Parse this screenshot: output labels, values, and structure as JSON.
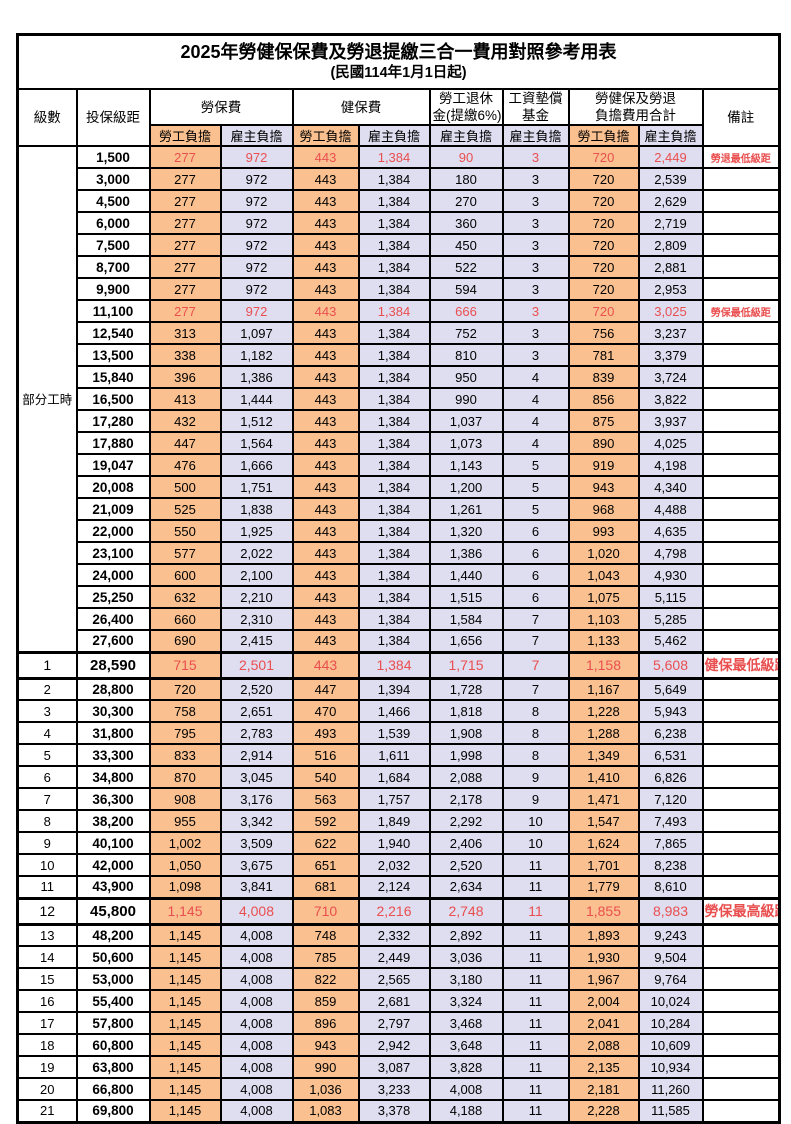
{
  "title": "2025年勞健保保費及勞退提繳三合一費用對照參考用表",
  "subtitle": "(民國114年1月1日起)",
  "columns": {
    "level": "級數",
    "bracket": "投保級距",
    "labor_insurance": "勞保費",
    "health_insurance": "健保費",
    "pension_line1": "勞工退休",
    "pension_line2": "金(提繳6%)",
    "wage_fund_line1": "工資墊償",
    "wage_fund_line2": "基金",
    "total_line1": "勞健保及勞退",
    "total_line2": "負擔費用合計",
    "remark": "備註",
    "employee_share": "勞工負擔",
    "employer_share": "雇主負擔"
  },
  "colors": {
    "employee_fill": "#fac08f",
    "employer_fill": "#dfddf0",
    "highlight_text": "#e94f4f",
    "border": "#000000"
  },
  "table": {
    "part_time_label": "部分工時",
    "part_time_rowspan": 23,
    "rows": [
      {
        "level": "",
        "bracket": "1,500",
        "v": [
          "277",
          "972",
          "443",
          "1,384",
          "90",
          "3",
          "720",
          "2,449"
        ],
        "remark": "勞退最低級距",
        "red": true,
        "thick": false
      },
      {
        "level": "",
        "bracket": "3,000",
        "v": [
          "277",
          "972",
          "443",
          "1,384",
          "180",
          "3",
          "720",
          "2,539"
        ],
        "remark": "",
        "red": false,
        "thick": false
      },
      {
        "level": "",
        "bracket": "4,500",
        "v": [
          "277",
          "972",
          "443",
          "1,384",
          "270",
          "3",
          "720",
          "2,629"
        ],
        "remark": "",
        "red": false,
        "thick": false
      },
      {
        "level": "",
        "bracket": "6,000",
        "v": [
          "277",
          "972",
          "443",
          "1,384",
          "360",
          "3",
          "720",
          "2,719"
        ],
        "remark": "",
        "red": false,
        "thick": false
      },
      {
        "level": "",
        "bracket": "7,500",
        "v": [
          "277",
          "972",
          "443",
          "1,384",
          "450",
          "3",
          "720",
          "2,809"
        ],
        "remark": "",
        "red": false,
        "thick": false
      },
      {
        "level": "",
        "bracket": "8,700",
        "v": [
          "277",
          "972",
          "443",
          "1,384",
          "522",
          "3",
          "720",
          "2,881"
        ],
        "remark": "",
        "red": false,
        "thick": false
      },
      {
        "level": "",
        "bracket": "9,900",
        "v": [
          "277",
          "972",
          "443",
          "1,384",
          "594",
          "3",
          "720",
          "2,953"
        ],
        "remark": "",
        "red": false,
        "thick": false
      },
      {
        "level": "",
        "bracket": "11,100",
        "v": [
          "277",
          "972",
          "443",
          "1,384",
          "666",
          "3",
          "720",
          "3,025"
        ],
        "remark": "勞保最低級距",
        "red": true,
        "thick": false
      },
      {
        "level": "",
        "bracket": "12,540",
        "v": [
          "313",
          "1,097",
          "443",
          "1,384",
          "752",
          "3",
          "756",
          "3,237"
        ],
        "remark": "",
        "red": false,
        "thick": false
      },
      {
        "level": "",
        "bracket": "13,500",
        "v": [
          "338",
          "1,182",
          "443",
          "1,384",
          "810",
          "3",
          "781",
          "3,379"
        ],
        "remark": "",
        "red": false,
        "thick": false
      },
      {
        "level": "",
        "bracket": "15,840",
        "v": [
          "396",
          "1,386",
          "443",
          "1,384",
          "950",
          "4",
          "839",
          "3,724"
        ],
        "remark": "",
        "red": false,
        "thick": false
      },
      {
        "level": "",
        "bracket": "16,500",
        "v": [
          "413",
          "1,444",
          "443",
          "1,384",
          "990",
          "4",
          "856",
          "3,822"
        ],
        "remark": "",
        "red": false,
        "thick": false
      },
      {
        "level": "",
        "bracket": "17,280",
        "v": [
          "432",
          "1,512",
          "443",
          "1,384",
          "1,037",
          "4",
          "875",
          "3,937"
        ],
        "remark": "",
        "red": false,
        "thick": false
      },
      {
        "level": "",
        "bracket": "17,880",
        "v": [
          "447",
          "1,564",
          "443",
          "1,384",
          "1,073",
          "4",
          "890",
          "4,025"
        ],
        "remark": "",
        "red": false,
        "thick": false
      },
      {
        "level": "",
        "bracket": "19,047",
        "v": [
          "476",
          "1,666",
          "443",
          "1,384",
          "1,143",
          "5",
          "919",
          "4,198"
        ],
        "remark": "",
        "red": false,
        "thick": false
      },
      {
        "level": "",
        "bracket": "20,008",
        "v": [
          "500",
          "1,751",
          "443",
          "1,384",
          "1,200",
          "5",
          "943",
          "4,340"
        ],
        "remark": "",
        "red": false,
        "thick": false
      },
      {
        "level": "",
        "bracket": "21,009",
        "v": [
          "525",
          "1,838",
          "443",
          "1,384",
          "1,261",
          "5",
          "968",
          "4,488"
        ],
        "remark": "",
        "red": false,
        "thick": false
      },
      {
        "level": "",
        "bracket": "22,000",
        "v": [
          "550",
          "1,925",
          "443",
          "1,384",
          "1,320",
          "6",
          "993",
          "4,635"
        ],
        "remark": "",
        "red": false,
        "thick": false
      },
      {
        "level": "",
        "bracket": "23,100",
        "v": [
          "577",
          "2,022",
          "443",
          "1,384",
          "1,386",
          "6",
          "1,020",
          "4,798"
        ],
        "remark": "",
        "red": false,
        "thick": false
      },
      {
        "level": "",
        "bracket": "24,000",
        "v": [
          "600",
          "2,100",
          "443",
          "1,384",
          "1,440",
          "6",
          "1,043",
          "4,930"
        ],
        "remark": "",
        "red": false,
        "thick": false
      },
      {
        "level": "",
        "bracket": "25,250",
        "v": [
          "632",
          "2,210",
          "443",
          "1,384",
          "1,515",
          "6",
          "1,075",
          "5,115"
        ],
        "remark": "",
        "red": false,
        "thick": false
      },
      {
        "level": "",
        "bracket": "26,400",
        "v": [
          "660",
          "2,310",
          "443",
          "1,384",
          "1,584",
          "7",
          "1,103",
          "5,285"
        ],
        "remark": "",
        "red": false,
        "thick": false
      },
      {
        "level": "",
        "bracket": "27,600",
        "v": [
          "690",
          "2,415",
          "443",
          "1,384",
          "1,656",
          "7",
          "1,133",
          "5,462"
        ],
        "remark": "",
        "red": false,
        "thick": false
      },
      {
        "level": "1",
        "bracket": "28,590",
        "v": [
          "715",
          "2,501",
          "443",
          "1,384",
          "1,715",
          "7",
          "1,158",
          "5,608"
        ],
        "remark": "健保最低級距",
        "red": true,
        "thick": true
      },
      {
        "level": "2",
        "bracket": "28,800",
        "v": [
          "720",
          "2,520",
          "447",
          "1,394",
          "1,728",
          "7",
          "1,167",
          "5,649"
        ],
        "remark": "",
        "red": false,
        "thick": false
      },
      {
        "level": "3",
        "bracket": "30,300",
        "v": [
          "758",
          "2,651",
          "470",
          "1,466",
          "1,818",
          "8",
          "1,228",
          "5,943"
        ],
        "remark": "",
        "red": false,
        "thick": false
      },
      {
        "level": "4",
        "bracket": "31,800",
        "v": [
          "795",
          "2,783",
          "493",
          "1,539",
          "1,908",
          "8",
          "1,288",
          "6,238"
        ],
        "remark": "",
        "red": false,
        "thick": false
      },
      {
        "level": "5",
        "bracket": "33,300",
        "v": [
          "833",
          "2,914",
          "516",
          "1,611",
          "1,998",
          "8",
          "1,349",
          "6,531"
        ],
        "remark": "",
        "red": false,
        "thick": false
      },
      {
        "level": "6",
        "bracket": "34,800",
        "v": [
          "870",
          "3,045",
          "540",
          "1,684",
          "2,088",
          "9",
          "1,410",
          "6,826"
        ],
        "remark": "",
        "red": false,
        "thick": false
      },
      {
        "level": "7",
        "bracket": "36,300",
        "v": [
          "908",
          "3,176",
          "563",
          "1,757",
          "2,178",
          "9",
          "1,471",
          "7,120"
        ],
        "remark": "",
        "red": false,
        "thick": false
      },
      {
        "level": "8",
        "bracket": "38,200",
        "v": [
          "955",
          "3,342",
          "592",
          "1,849",
          "2,292",
          "10",
          "1,547",
          "7,493"
        ],
        "remark": "",
        "red": false,
        "thick": false
      },
      {
        "level": "9",
        "bracket": "40,100",
        "v": [
          "1,002",
          "3,509",
          "622",
          "1,940",
          "2,406",
          "10",
          "1,624",
          "7,865"
        ],
        "remark": "",
        "red": false,
        "thick": false
      },
      {
        "level": "10",
        "bracket": "42,000",
        "v": [
          "1,050",
          "3,675",
          "651",
          "2,032",
          "2,520",
          "11",
          "1,701",
          "8,238"
        ],
        "remark": "",
        "red": false,
        "thick": false
      },
      {
        "level": "11",
        "bracket": "43,900",
        "v": [
          "1,098",
          "3,841",
          "681",
          "2,124",
          "2,634",
          "11",
          "1,779",
          "8,610"
        ],
        "remark": "",
        "red": false,
        "thick": false
      },
      {
        "level": "12",
        "bracket": "45,800",
        "v": [
          "1,145",
          "4,008",
          "710",
          "2,216",
          "2,748",
          "11",
          "1,855",
          "8,983"
        ],
        "remark": "勞保最高級距",
        "red": true,
        "thick": true
      },
      {
        "level": "13",
        "bracket": "48,200",
        "v": [
          "1,145",
          "4,008",
          "748",
          "2,332",
          "2,892",
          "11",
          "1,893",
          "9,243"
        ],
        "remark": "",
        "red": false,
        "thick": false
      },
      {
        "level": "14",
        "bracket": "50,600",
        "v": [
          "1,145",
          "4,008",
          "785",
          "2,449",
          "3,036",
          "11",
          "1,930",
          "9,504"
        ],
        "remark": "",
        "red": false,
        "thick": false
      },
      {
        "level": "15",
        "bracket": "53,000",
        "v": [
          "1,145",
          "4,008",
          "822",
          "2,565",
          "3,180",
          "11",
          "1,967",
          "9,764"
        ],
        "remark": "",
        "red": false,
        "thick": false
      },
      {
        "level": "16",
        "bracket": "55,400",
        "v": [
          "1,145",
          "4,008",
          "859",
          "2,681",
          "3,324",
          "11",
          "2,004",
          "10,024"
        ],
        "remark": "",
        "red": false,
        "thick": false
      },
      {
        "level": "17",
        "bracket": "57,800",
        "v": [
          "1,145",
          "4,008",
          "896",
          "2,797",
          "3,468",
          "11",
          "2,041",
          "10,284"
        ],
        "remark": "",
        "red": false,
        "thick": false
      },
      {
        "level": "18",
        "bracket": "60,800",
        "v": [
          "1,145",
          "4,008",
          "943",
          "2,942",
          "3,648",
          "11",
          "2,088",
          "10,609"
        ],
        "remark": "",
        "red": false,
        "thick": false
      },
      {
        "level": "19",
        "bracket": "63,800",
        "v": [
          "1,145",
          "4,008",
          "990",
          "3,087",
          "3,828",
          "11",
          "2,135",
          "10,934"
        ],
        "remark": "",
        "red": false,
        "thick": false
      },
      {
        "level": "20",
        "bracket": "66,800",
        "v": [
          "1,145",
          "4,008",
          "1,036",
          "3,233",
          "4,008",
          "11",
          "2,181",
          "11,260"
        ],
        "remark": "",
        "red": false,
        "thick": false
      },
      {
        "level": "21",
        "bracket": "69,800",
        "v": [
          "1,145",
          "4,008",
          "1,083",
          "3,378",
          "4,188",
          "11",
          "2,228",
          "11,585"
        ],
        "remark": "",
        "red": false,
        "thick": false
      }
    ]
  }
}
